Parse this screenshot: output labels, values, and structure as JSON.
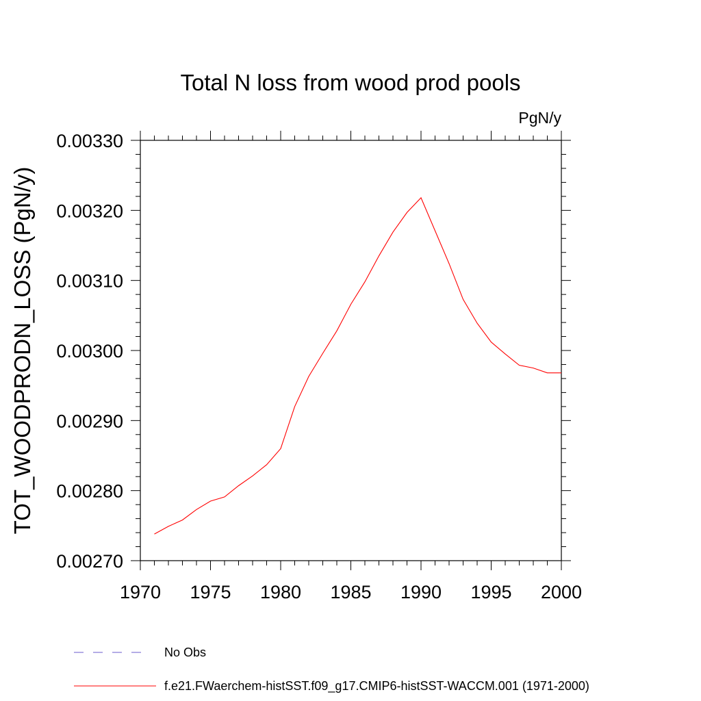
{
  "chart_data": {
    "type": "line",
    "title": "Total N loss from wood prod pools",
    "units": "PgN/y",
    "ylabel": "TOT_WOODPRODN_LOSS  (PgN/y)",
    "xlabel": "",
    "xlim": [
      1970,
      2000
    ],
    "ylim": [
      0.0027,
      0.0033
    ],
    "xticks": [
      1970,
      1975,
      1980,
      1985,
      1990,
      1995,
      2000
    ],
    "xtick_labels": [
      "1970",
      "1975",
      "1980",
      "1985",
      "1990",
      "1995",
      "2000"
    ],
    "yticks": [
      0.0027,
      0.0028,
      0.0029,
      0.003,
      0.0031,
      0.0032,
      0.0033
    ],
    "ytick_labels": [
      "0.00270",
      "0.00280",
      "0.00290",
      "0.00300",
      "0.00310",
      "0.00320",
      "0.00330"
    ],
    "grid": false,
    "legend_position": "bottom",
    "series": [
      {
        "name": "f.e21.FWaerchem-histSST.f09_g17.CMIP6-histSST-WACCM.001 (1971-2000)",
        "color": "#ff0000",
        "dash": "solid",
        "x": [
          1971,
          1972,
          1973,
          1974,
          1975,
          1976,
          1977,
          1978,
          1979,
          1980,
          1981,
          1982,
          1983,
          1984,
          1985,
          1986,
          1987,
          1988,
          1989,
          1990,
          1991,
          1992,
          1993,
          1994,
          1995,
          1996,
          1997,
          1998,
          1999,
          2000
        ],
        "y": [
          0.002738,
          0.002749,
          0.002758,
          0.002773,
          0.002785,
          0.002791,
          0.002807,
          0.002821,
          0.002837,
          0.00286,
          0.00292,
          0.002963,
          0.002996,
          0.003028,
          0.003066,
          0.003098,
          0.003135,
          0.003169,
          0.003197,
          0.003218,
          0.003171,
          0.003124,
          0.003073,
          0.003039,
          0.003012,
          0.002995,
          0.002979,
          0.002975,
          0.002968,
          0.002968
        ]
      },
      {
        "name": "No Obs",
        "color": "#6a5acd",
        "dash": "dashed",
        "x": [],
        "y": []
      }
    ]
  }
}
